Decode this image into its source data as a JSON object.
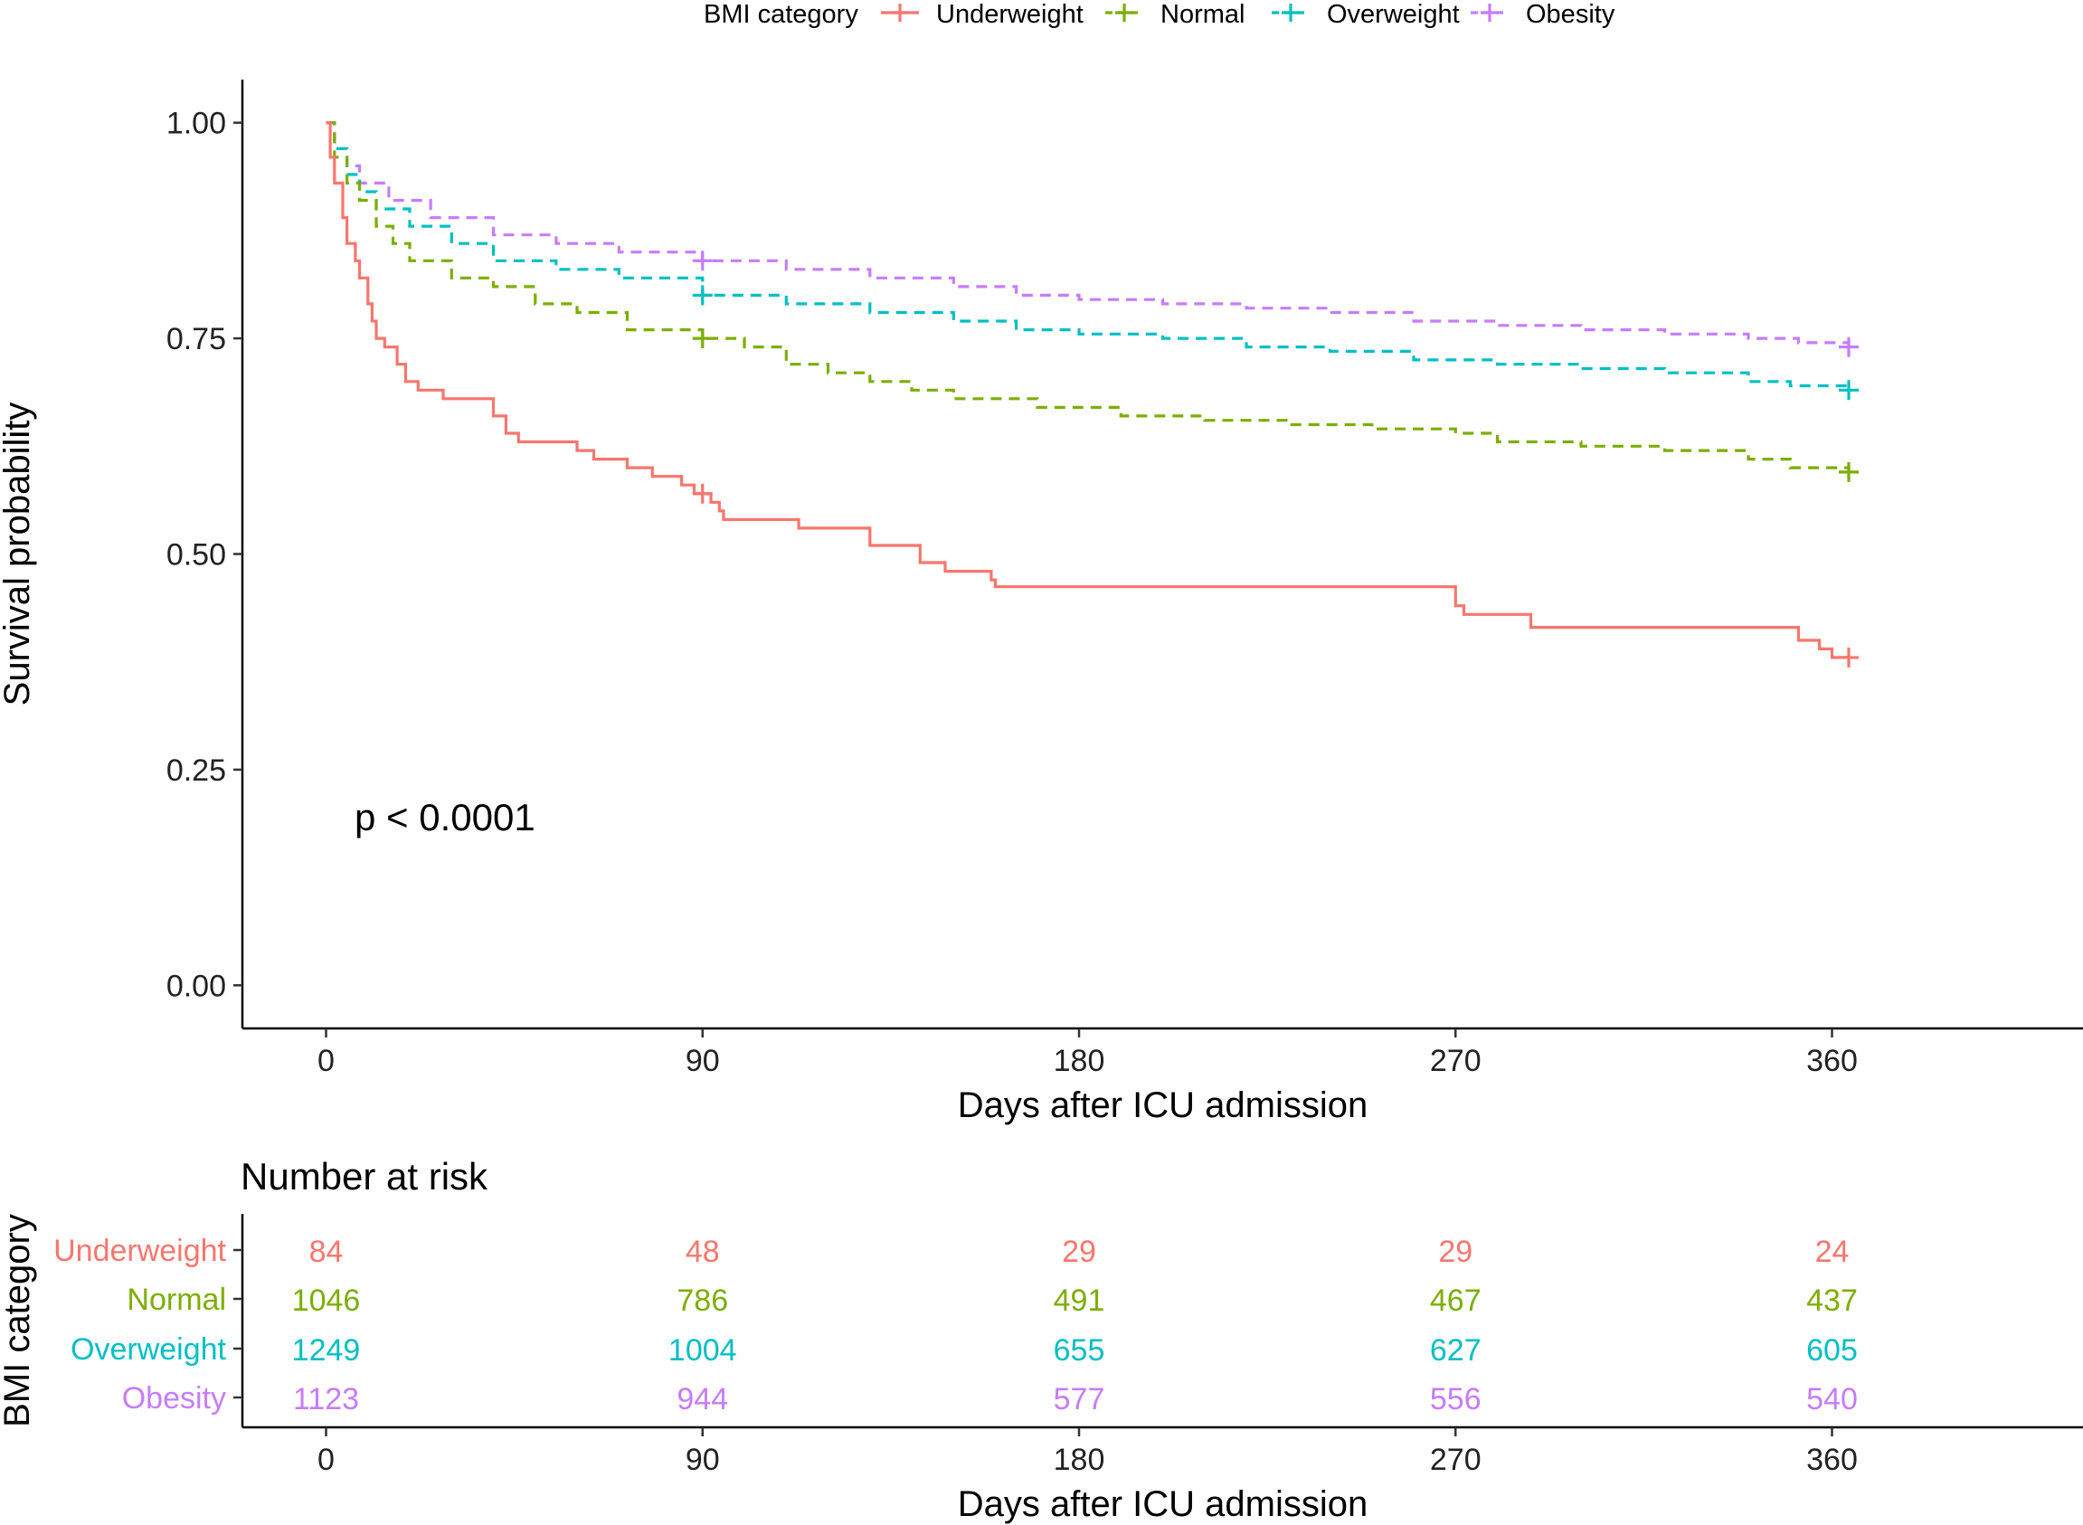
{
  "chart_data": {
    "type": "line",
    "title": "",
    "legend": {
      "title": "BMI category",
      "placement": "top",
      "entries": [
        "Underweight",
        "Normal",
        "Overweight",
        "Obesity"
      ]
    },
    "xlabel": "Days after ICU admission",
    "ylabel": "Survival probability",
    "xlim": [
      -20,
      420
    ],
    "ylim": [
      -0.05,
      1.05
    ],
    "x_ticks": [
      0,
      90,
      180,
      270,
      360
    ],
    "y_ticks": [
      0.0,
      0.25,
      0.5,
      0.75,
      1.0
    ],
    "y_tick_labels": [
      "0.00",
      "0.25",
      "0.50",
      "0.75",
      "1.00"
    ],
    "x_tick_labels": [
      "0",
      "90",
      "180",
      "270",
      "360"
    ],
    "annotation": "p < 0.0001",
    "series": [
      {
        "name": "Underweight",
        "color": "#F8766D",
        "dash": "solid",
        "points": [
          [
            0,
            1.0
          ],
          [
            1,
            0.96
          ],
          [
            2,
            0.93
          ],
          [
            4,
            0.89
          ],
          [
            5,
            0.86
          ],
          [
            7,
            0.84
          ],
          [
            8,
            0.82
          ],
          [
            10,
            0.79
          ],
          [
            11,
            0.77
          ],
          [
            12,
            0.75
          ],
          [
            14,
            0.74
          ],
          [
            17,
            0.72
          ],
          [
            19,
            0.7
          ],
          [
            22,
            0.69
          ],
          [
            28,
            0.68
          ],
          [
            40,
            0.66
          ],
          [
            43,
            0.64
          ],
          [
            46,
            0.63
          ],
          [
            60,
            0.62
          ],
          [
            64,
            0.61
          ],
          [
            72,
            0.6
          ],
          [
            78,
            0.59
          ],
          [
            85,
            0.58
          ],
          [
            88,
            0.57
          ],
          [
            92,
            0.56
          ],
          [
            94,
            0.55
          ],
          [
            95,
            0.54
          ],
          [
            113,
            0.53
          ],
          [
            130,
            0.51
          ],
          [
            142,
            0.49
          ],
          [
            148,
            0.48
          ],
          [
            159,
            0.47
          ],
          [
            160,
            0.462
          ],
          [
            268,
            0.462
          ],
          [
            270,
            0.44
          ],
          [
            272,
            0.43
          ],
          [
            288,
            0.415
          ],
          [
            351,
            0.415
          ],
          [
            352,
            0.4
          ],
          [
            357,
            0.39
          ],
          [
            360,
            0.38
          ],
          [
            364,
            0.38
          ]
        ],
        "censor": [
          [
            90,
            0.57
          ],
          [
            364,
            0.38
          ]
        ]
      },
      {
        "name": "Normal",
        "color": "#7CAE00",
        "dash": "dashed",
        "points": [
          [
            0,
            1.0
          ],
          [
            2,
            0.96
          ],
          [
            5,
            0.93
          ],
          [
            8,
            0.91
          ],
          [
            12,
            0.88
          ],
          [
            16,
            0.86
          ],
          [
            20,
            0.84
          ],
          [
            30,
            0.82
          ],
          [
            40,
            0.81
          ],
          [
            50,
            0.79
          ],
          [
            60,
            0.78
          ],
          [
            72,
            0.76
          ],
          [
            85,
            0.76
          ],
          [
            90,
            0.75
          ],
          [
            100,
            0.74
          ],
          [
            110,
            0.72
          ],
          [
            120,
            0.71
          ],
          [
            130,
            0.7
          ],
          [
            140,
            0.69
          ],
          [
            150,
            0.68
          ],
          [
            160,
            0.68
          ],
          [
            170,
            0.67
          ],
          [
            180,
            0.67
          ],
          [
            190,
            0.66
          ],
          [
            200,
            0.66
          ],
          [
            210,
            0.655
          ],
          [
            230,
            0.65
          ],
          [
            250,
            0.645
          ],
          [
            270,
            0.64
          ],
          [
            280,
            0.63
          ],
          [
            300,
            0.625
          ],
          [
            320,
            0.62
          ],
          [
            340,
            0.61
          ],
          [
            350,
            0.6
          ],
          [
            364,
            0.595
          ]
        ],
        "censor": [
          [
            90,
            0.75
          ],
          [
            364,
            0.595
          ]
        ]
      },
      {
        "name": "Overweight",
        "color": "#00BFC4",
        "dash": "dashed",
        "points": [
          [
            0,
            1.0
          ],
          [
            2,
            0.97
          ],
          [
            5,
            0.94
          ],
          [
            8,
            0.92
          ],
          [
            12,
            0.9
          ],
          [
            20,
            0.88
          ],
          [
            30,
            0.86
          ],
          [
            40,
            0.84
          ],
          [
            55,
            0.83
          ],
          [
            70,
            0.82
          ],
          [
            90,
            0.8
          ],
          [
            110,
            0.79
          ],
          [
            130,
            0.78
          ],
          [
            150,
            0.77
          ],
          [
            165,
            0.76
          ],
          [
            180,
            0.755
          ],
          [
            200,
            0.75
          ],
          [
            220,
            0.74
          ],
          [
            240,
            0.735
          ],
          [
            260,
            0.725
          ],
          [
            280,
            0.72
          ],
          [
            300,
            0.715
          ],
          [
            320,
            0.71
          ],
          [
            340,
            0.7
          ],
          [
            350,
            0.695
          ],
          [
            364,
            0.69
          ]
        ],
        "censor": [
          [
            90,
            0.8
          ],
          [
            364,
            0.69
          ]
        ]
      },
      {
        "name": "Obesity",
        "color": "#C77CFF",
        "dash": "dashed",
        "points": [
          [
            0,
            1.0
          ],
          [
            2,
            0.97
          ],
          [
            5,
            0.95
          ],
          [
            8,
            0.93
          ],
          [
            15,
            0.91
          ],
          [
            25,
            0.89
          ],
          [
            40,
            0.87
          ],
          [
            55,
            0.86
          ],
          [
            70,
            0.85
          ],
          [
            90,
            0.84
          ],
          [
            110,
            0.83
          ],
          [
            130,
            0.82
          ],
          [
            150,
            0.81
          ],
          [
            165,
            0.8
          ],
          [
            180,
            0.795
          ],
          [
            200,
            0.79
          ],
          [
            220,
            0.785
          ],
          [
            240,
            0.78
          ],
          [
            260,
            0.77
          ],
          [
            280,
            0.765
          ],
          [
            300,
            0.76
          ],
          [
            320,
            0.755
          ],
          [
            340,
            0.75
          ],
          [
            352,
            0.745
          ],
          [
            364,
            0.74
          ]
        ],
        "censor": [
          [
            90,
            0.84
          ],
          [
            364,
            0.74
          ]
        ]
      }
    ],
    "risk_table": {
      "title": "Number at risk",
      "ylabel": "BMI category",
      "xlabel": "Days after ICU admission",
      "times": [
        0,
        90,
        180,
        270,
        360
      ],
      "rows": [
        {
          "name": "Underweight",
          "color": "#F8766D",
          "values": [
            84,
            48,
            29,
            29,
            24
          ]
        },
        {
          "name": "Normal",
          "color": "#7CAE00",
          "values": [
            1046,
            786,
            491,
            467,
            437
          ]
        },
        {
          "name": "Overweight",
          "color": "#00BFC4",
          "values": [
            1249,
            1004,
            655,
            627,
            605
          ]
        },
        {
          "name": "Obesity",
          "color": "#C77CFF",
          "values": [
            1123,
            944,
            577,
            556,
            540
          ]
        }
      ]
    }
  }
}
